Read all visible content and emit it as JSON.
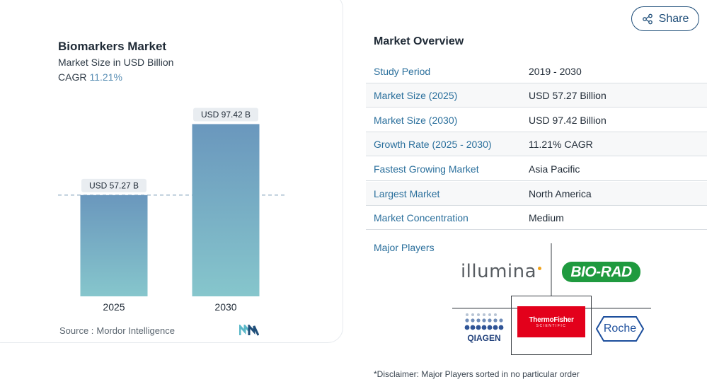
{
  "chart_data": {
    "type": "bar",
    "title": "Biomarkers Market",
    "subtitle": "Market Size in USD Billion",
    "cagr_label": "CAGR",
    "cagr_value": "11.21%",
    "categories": [
      "2025",
      "2030"
    ],
    "values": [
      57.27,
      97.42
    ],
    "data_labels": [
      "USD 57.27 B",
      "USD 97.42 B"
    ],
    "ylim": [
      0,
      120
    ],
    "reference_line_value": 57.27,
    "grid": false,
    "bar_gradient": [
      "#6a97bd",
      "#86c6cc"
    ]
  },
  "source": {
    "label": "Source :",
    "name": "Mordor Intelligence"
  },
  "share": {
    "label": "Share",
    "icon": "share-icon"
  },
  "overview": {
    "title": "Market Overview",
    "rows": [
      {
        "label": "Study Period",
        "value": "2019 - 2030"
      },
      {
        "label": "Market Size (2025)",
        "value": "USD 57.27 Billion"
      },
      {
        "label": "Market Size (2030)",
        "value": "USD 97.42 Billion"
      },
      {
        "label": "Growth Rate (2025 - 2030)",
        "value": "11.21% CAGR"
      },
      {
        "label": "Fastest Growing Market",
        "value": "Asia Pacific"
      },
      {
        "label": "Largest Market",
        "value": "North America"
      },
      {
        "label": "Market Concentration",
        "value": "Medium"
      }
    ]
  },
  "major_players": {
    "label": "Major Players",
    "logos": [
      {
        "name": "illumina",
        "text": "illumina"
      },
      {
        "name": "bio-rad",
        "text": "BIO-RAD"
      },
      {
        "name": "qiagen",
        "text": "QIAGEN"
      },
      {
        "name": "thermo-fisher",
        "text_top": "ThermoFisher",
        "text_bottom": "SCIENTIFIC"
      },
      {
        "name": "roche",
        "text": "Roche"
      }
    ]
  },
  "disclaimer": "*Disclaimer: Major Players sorted in no particular order"
}
